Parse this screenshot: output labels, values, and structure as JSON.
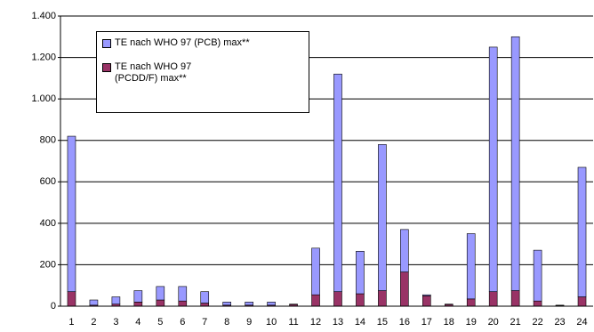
{
  "chart_data": {
    "type": "stacked_bar",
    "categories": [
      "1",
      "2",
      "3",
      "4",
      "5",
      "6",
      "7",
      "8",
      "9",
      "10",
      "11",
      "12",
      "13",
      "14",
      "15",
      "16",
      "17",
      "18",
      "19",
      "20",
      "21",
      "22",
      "23",
      "24"
    ],
    "series": [
      {
        "name": "TE nach WHO 97 (PCB) max**",
        "color": "#9999ff",
        "values": [
          750,
          25,
          35,
          55,
          65,
          70,
          55,
          15,
          15,
          15,
          2,
          225,
          1050,
          205,
          705,
          205,
          5,
          2,
          315,
          1180,
          1225,
          245,
          2,
          625
        ]
      },
      {
        "name": "TE nach WHO 97 (PCDD/F) max**",
        "color": "#993366",
        "values": [
          70,
          5,
          10,
          20,
          30,
          25,
          15,
          5,
          5,
          5,
          8,
          55,
          70,
          60,
          75,
          165,
          50,
          8,
          35,
          70,
          75,
          25,
          3,
          45
        ]
      }
    ],
    "ylim": [
      0,
      1400
    ],
    "yticks": [
      0,
      200,
      400,
      600,
      800,
      {
        "value": 1000,
        "label": "1.000"
      },
      {
        "value": 1200,
        "label": "1.200"
      },
      {
        "value": 1400,
        "label": "1.400"
      }
    ],
    "grid": true
  }
}
